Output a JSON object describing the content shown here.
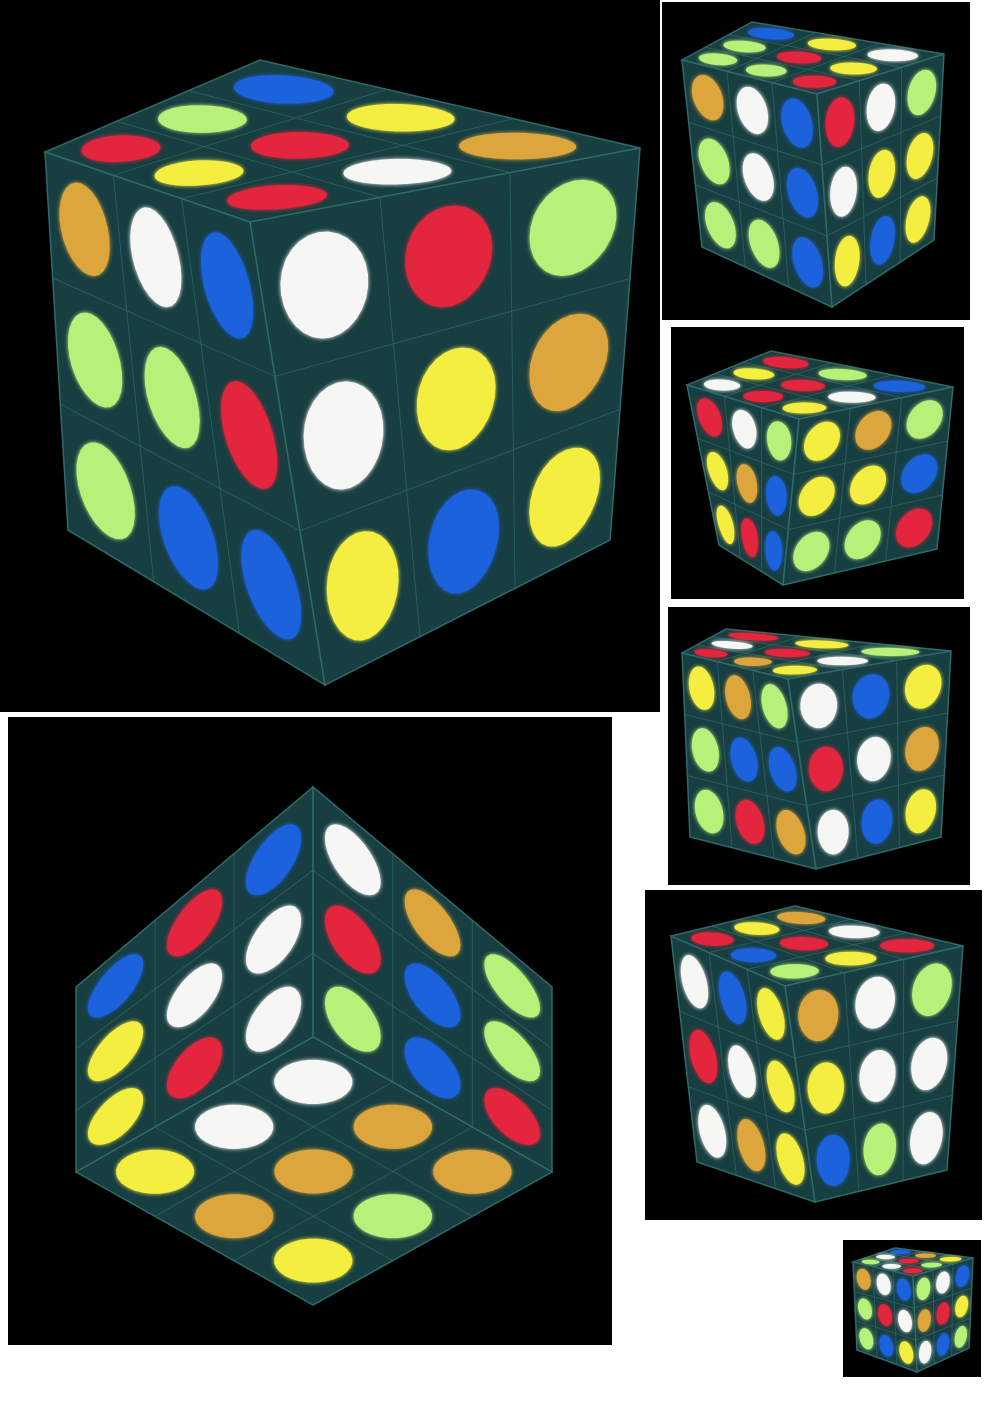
{
  "colors": {
    "background": "#000000",
    "cube_body": "#173e40",
    "cube_edge": "#2f6a6a",
    "W": "#f6f7f4",
    "Y": "#f4ee41",
    "R": "#e3253c",
    "B": "#1f62dc",
    "O": "#dca63c",
    "G": "#b6f27a"
  },
  "panels": [
    {
      "name": "large-cube-corner-view",
      "top": [
        "B",
        "Y",
        "O",
        "G",
        "R",
        "W",
        "R",
        "Y",
        "R"
      ],
      "left": [
        "O",
        "W",
        "B",
        "G",
        "G",
        "R",
        "G",
        "B",
        "B"
      ],
      "right": [
        "W",
        "R",
        "G",
        "W",
        "Y",
        "O",
        "Y",
        "B",
        "Y"
      ]
    },
    {
      "name": "small-cube-view-1",
      "top": [
        "B",
        "Y",
        "W",
        "G",
        "R",
        "Y",
        "G",
        "G",
        "R"
      ],
      "left": [
        "O",
        "W",
        "B",
        "G",
        "W",
        "B",
        "G",
        "G",
        "B"
      ],
      "right": [
        "R",
        "W",
        "G",
        "W",
        "Y",
        "Y",
        "Y",
        "B",
        "Y"
      ]
    },
    {
      "name": "small-cube-view-2",
      "top": [
        "R",
        "G",
        "B",
        "Y",
        "R",
        "W",
        "W",
        "R",
        "Y"
      ],
      "left": [
        "R",
        "W",
        "G",
        "Y",
        "O",
        "B",
        "Y",
        "R",
        "B"
      ],
      "right": [
        "Y",
        "O",
        "G",
        "Y",
        "Y",
        "B",
        "G",
        "G",
        "R"
      ]
    },
    {
      "name": "small-cube-view-3",
      "top": [
        "R",
        "Y",
        "G",
        "W",
        "R",
        "W",
        "R",
        "O",
        "Y"
      ],
      "left": [
        "Y",
        "O",
        "G",
        "G",
        "B",
        "B",
        "G",
        "R",
        "O"
      ],
      "right": [
        "W",
        "B",
        "Y",
        "R",
        "W",
        "O",
        "W",
        "B",
        "Y"
      ]
    },
    {
      "name": "small-cube-view-4",
      "top": [
        "O",
        "W",
        "R",
        "Y",
        "R",
        "Y",
        "R",
        "B",
        "G"
      ],
      "left": [
        "W",
        "B",
        "Y",
        "R",
        "W",
        "Y",
        "W",
        "O",
        "Y"
      ],
      "right": [
        "O",
        "W",
        "G",
        "Y",
        "W",
        "W",
        "B",
        "G",
        "W"
      ]
    },
    {
      "name": "tiny-cube-view",
      "top": [
        "B",
        "O",
        "Y",
        "W",
        "R",
        "G",
        "G",
        "W",
        "R"
      ],
      "left": [
        "O",
        "W",
        "B",
        "G",
        "R",
        "W",
        "G",
        "B",
        "Y"
      ],
      "right": [
        "G",
        "W",
        "B",
        "O",
        "R",
        "Y",
        "W",
        "B",
        "G"
      ]
    },
    {
      "name": "tilted-cube-vertex-view",
      "front_a": [
        "B",
        "W",
        "W",
        "R",
        "W",
        "R",
        "B",
        "Y",
        "Y"
      ],
      "front_b": [
        "W",
        "O",
        "G",
        "R",
        "B",
        "G",
        "G",
        "B",
        "R"
      ],
      "bottom": [
        "W",
        "O",
        "O",
        "W",
        "O",
        "G",
        "Y",
        "O",
        "Y"
      ]
    }
  ]
}
